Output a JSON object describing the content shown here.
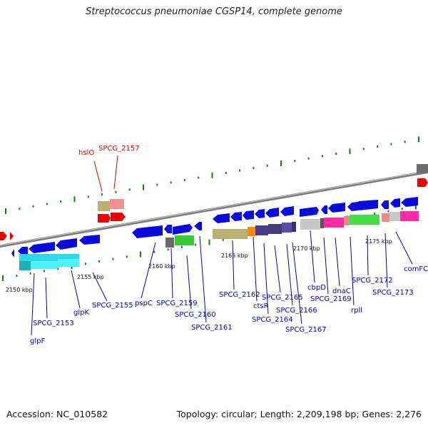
{
  "title": "Streptococcus pneumoniae CGSP14, complete genome",
  "accession": "Accession: NC_010582",
  "summary": "Topology: circular; Length: 2,209,198 bp; Genes: 2,276",
  "colors": {
    "backbone": "#8c8c8c",
    "tick": "#1a7a1a",
    "gene_blue": "#0a0adc",
    "label_blue": "#0000bb",
    "label_red": "#dd0000"
  },
  "scale_labels": [
    {
      "text": "2150 kbp"
    },
    {
      "text": "2155 kbp"
    },
    {
      "text": "2160 kbp"
    },
    {
      "text": "2165 kbp"
    },
    {
      "text": "2170 kbp"
    },
    {
      "text": "2175 kbp"
    }
  ],
  "gene_labels": [
    {
      "text": "hslO",
      "color": "red"
    },
    {
      "text": "SPCG_2157",
      "color": "red"
    },
    {
      "text": "SPCG_2153",
      "color": "blue"
    },
    {
      "text": "glpF",
      "color": "blue"
    },
    {
      "text": "glpK",
      "color": "blue"
    },
    {
      "text": "SPCG_2155",
      "color": "blue"
    },
    {
      "text": "pspC",
      "color": "blue"
    },
    {
      "text": "SPCG_2159",
      "color": "blue"
    },
    {
      "text": "SPCG_2160",
      "color": "blue"
    },
    {
      "text": "SPCG_2161",
      "color": "blue"
    },
    {
      "text": "SPCG_2162",
      "color": "blue"
    },
    {
      "text": "ctsR",
      "color": "blue"
    },
    {
      "text": "SPCG_2164",
      "color": "blue"
    },
    {
      "text": "SPCG_2165",
      "color": "blue"
    },
    {
      "text": "SPCG_2166",
      "color": "blue"
    },
    {
      "text": "SPCG_2167",
      "color": "blue"
    },
    {
      "text": "cbpD",
      "color": "blue"
    },
    {
      "text": "SPCG_2169",
      "color": "blue"
    },
    {
      "text": "dnaC",
      "color": "blue"
    },
    {
      "text": "rplI",
      "color": "blue"
    },
    {
      "text": "SPCG_2172",
      "color": "blue"
    },
    {
      "text": "SPCG_2173",
      "color": "blue"
    },
    {
      "text": "comFC",
      "color": "blue"
    }
  ]
}
